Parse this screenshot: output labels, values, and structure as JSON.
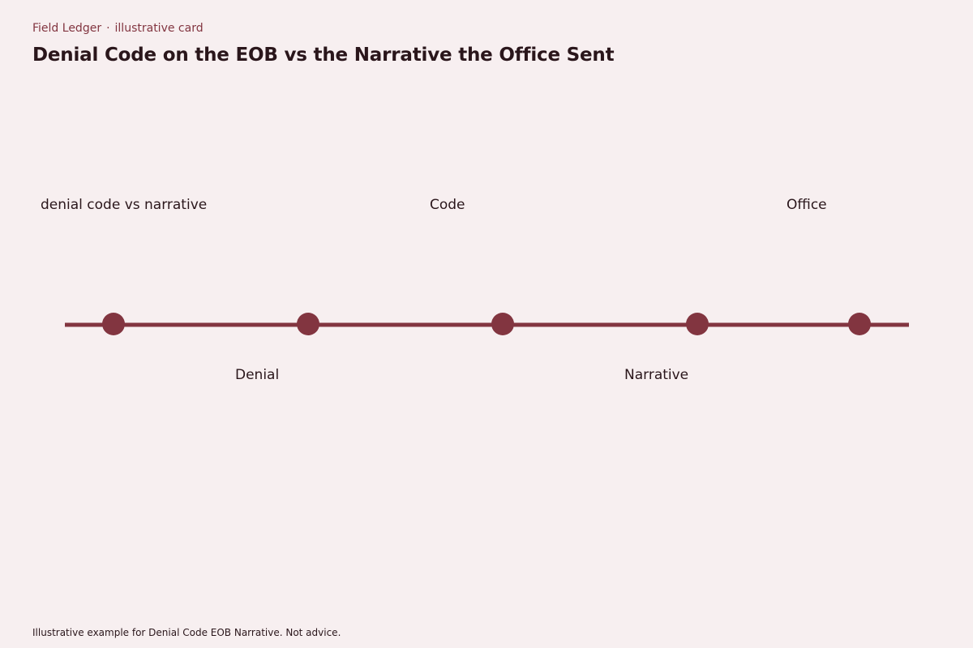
{
  "header": {
    "kicker_brand": "Field Ledger",
    "kicker_separator": "·",
    "kicker_type": "illustrative card",
    "title": "Denial Code on the EOB vs the Narrative the Office Sent"
  },
  "diagram": {
    "line_color": "#823540",
    "node_count": 5,
    "labels": {
      "top_left": "denial code vs narrative",
      "top_middle": "Code",
      "top_right": "Office",
      "bottom_left": "Denial",
      "bottom_right": "Narrative"
    }
  },
  "footer": {
    "note": "Illustrative example for Denial Code EOB Narrative. Not advice."
  },
  "colors": {
    "background": "#f7eff0",
    "accent": "#823540",
    "text": "#2a161b"
  }
}
